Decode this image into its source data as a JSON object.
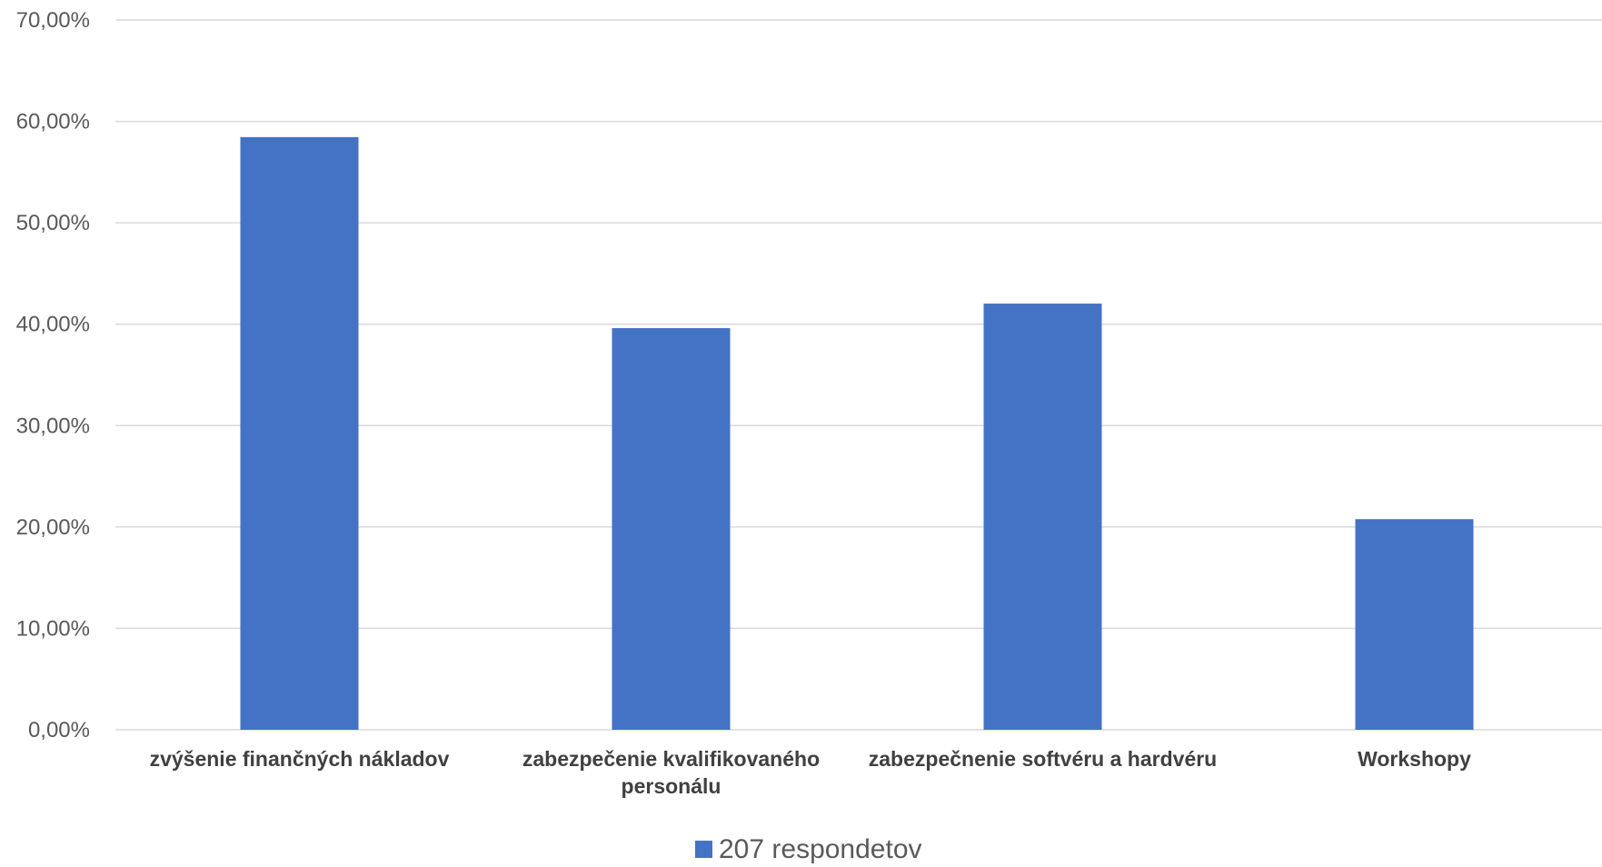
{
  "chart_data": {
    "type": "bar",
    "categories": [
      [
        "zvýšenie finančných nákladov"
      ],
      [
        "zabezpečenie kvalifikovaného",
        "personálu"
      ],
      [
        "zabezpečnenie softvéru a hardvéru"
      ],
      [
        "Workshopy"
      ]
    ],
    "series": [
      {
        "name": "207 respondetov",
        "values": [
          58.45,
          39.61,
          42.03,
          20.77
        ],
        "color": "#4472c4"
      }
    ],
    "ylim": [
      0,
      70
    ],
    "yticks": [
      0,
      10,
      20,
      30,
      40,
      50,
      60,
      70
    ],
    "ytick_labels": [
      "0,00%",
      "10,00%",
      "20,00%",
      "30,00%",
      "40,00%",
      "50,00%",
      "60,00%",
      "70,00%"
    ],
    "grid": true,
    "legend_position": "bottom-center",
    "title": "",
    "xlabel": "",
    "ylabel": ""
  }
}
